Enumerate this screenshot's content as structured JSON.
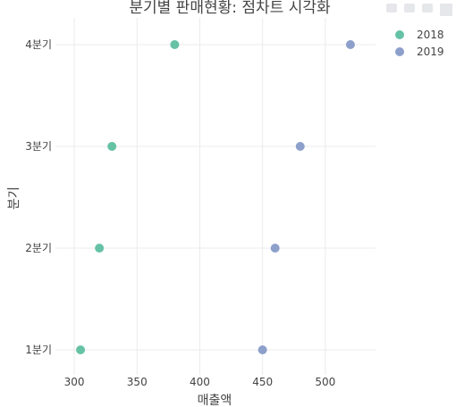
{
  "chart_data": {
    "type": "scatter",
    "title": "분기별 판매현황: 점차트 시각화",
    "xlabel": "매출액",
    "ylabel": "분기",
    "categories": [
      "1분기",
      "2분기",
      "3분기",
      "4분기"
    ],
    "xlim": [
      285,
      540
    ],
    "xticks": [
      300,
      350,
      400,
      450,
      500
    ],
    "grid": true,
    "legend_position": "top-right",
    "series": [
      {
        "name": "2018",
        "color": "#66c2a5",
        "values": [
          305,
          320,
          330,
          380
        ]
      },
      {
        "name": "2019",
        "color": "#8da0cb",
        "values": [
          450,
          460,
          480,
          520
        ]
      }
    ]
  }
}
